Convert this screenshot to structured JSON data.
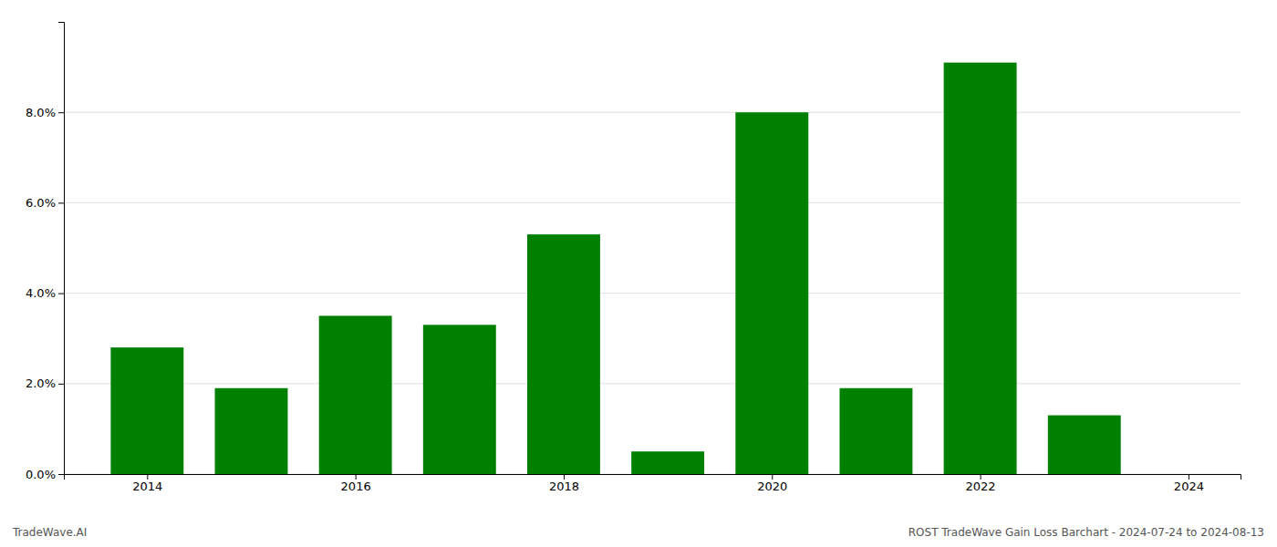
{
  "chart_data": {
    "type": "bar",
    "x": [
      2014,
      2015,
      2016,
      2017,
      2018,
      2019,
      2020,
      2021,
      2022,
      2023
    ],
    "values": [
      0.028,
      0.019,
      0.035,
      0.033,
      0.053,
      0.005,
      0.08,
      0.019,
      0.091,
      0.013
    ],
    "color": "#008000",
    "xlim": [
      2013.2,
      2024.5
    ],
    "xticks": [
      2014,
      2016,
      2018,
      2020,
      2022,
      2024
    ],
    "ylim": [
      0,
      0.1
    ],
    "yticks": [
      {
        "value": 0.0,
        "label": "0.0%"
      },
      {
        "value": 0.02,
        "label": "2.0%"
      },
      {
        "value": 0.04,
        "label": "4.0%"
      },
      {
        "value": 0.06,
        "label": "6.0%"
      },
      {
        "value": 0.08,
        "label": "8.0%"
      }
    ],
    "grid": true,
    "annotations": [
      "TradeWave.AI",
      "ROST TradeWave Gain Loss Barchart - 2024-07-24 to 2024-08-13"
    ]
  }
}
